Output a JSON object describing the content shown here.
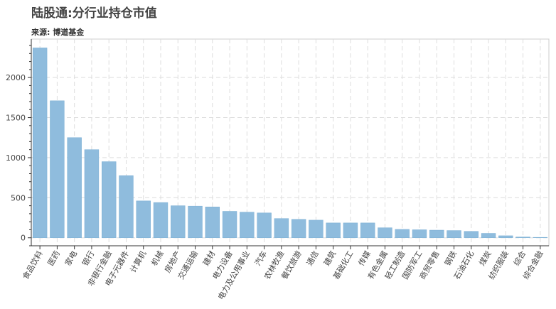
{
  "title": "陆股通:分行业持仓市值",
  "subtitle": "来源: 博道基金",
  "chart_data": {
    "type": "bar",
    "categories": [
      "食品饮料",
      "医药",
      "家电",
      "银行",
      "非银行金融",
      "电子元器件",
      "计算机",
      "机械",
      "房地产",
      "交通运输",
      "建材",
      "电力设备",
      "电力及公用事业",
      "汽车",
      "农林牧渔",
      "餐饮旅游",
      "通信",
      "建筑",
      "基础化工",
      "传媒",
      "有色金属",
      "轻工制造",
      "国防军工",
      "商贸零售",
      "钢铁",
      "石油石化",
      "煤炭",
      "纺织服装",
      "综合",
      "综合金融"
    ],
    "values": [
      2370,
      1710,
      1250,
      1100,
      950,
      775,
      460,
      440,
      400,
      395,
      385,
      330,
      320,
      310,
      240,
      230,
      220,
      185,
      185,
      185,
      125,
      105,
      100,
      95,
      90,
      80,
      55,
      25,
      10,
      5
    ],
    "yticks": [
      0,
      500,
      1000,
      1500,
      2000
    ],
    "ylim": [
      -100,
      2480
    ],
    "grid": true,
    "bar_color": "#8fbcdd"
  }
}
